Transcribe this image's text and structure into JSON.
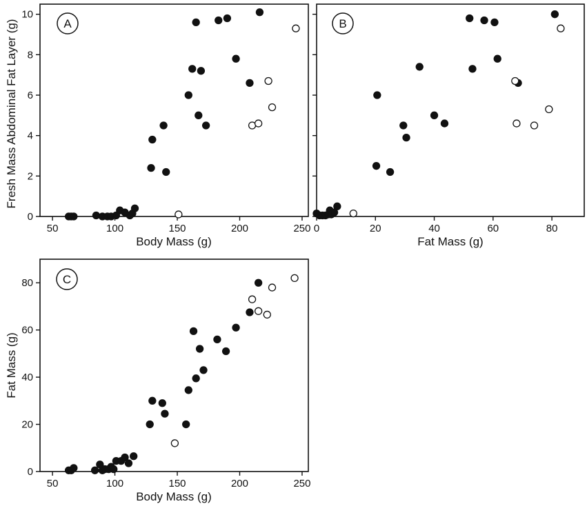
{
  "chart_data": [
    {
      "panel": "A",
      "type": "scatter",
      "xlabel": "Body Mass (g)",
      "ylabel": "Fresh Mass Abdominal Fat Layer (g)",
      "xlim": [
        40,
        255
      ],
      "ylim": [
        0,
        10.5
      ],
      "xticks": [
        50,
        100,
        150,
        200,
        250
      ],
      "yticks": [
        0,
        2,
        4,
        6,
        8,
        10
      ],
      "grid": false,
      "series": [
        {
          "marker": "filled",
          "points": [
            [
              63,
              0.0
            ],
            [
              65,
              0.0
            ],
            [
              67,
              0.0
            ],
            [
              85,
              0.05
            ],
            [
              90,
              0.0
            ],
            [
              94,
              0.0
            ],
            [
              97,
              0.0
            ],
            [
              101,
              0.05
            ],
            [
              104,
              0.3
            ],
            [
              108,
              0.2
            ],
            [
              112,
              0.05
            ],
            [
              114,
              0.15
            ],
            [
              116,
              0.4
            ],
            [
              129,
              2.4
            ],
            [
              130,
              3.8
            ],
            [
              139,
              4.5
            ],
            [
              141,
              2.2
            ],
            [
              159,
              6.0
            ],
            [
              162,
              7.3
            ],
            [
              165,
              9.6
            ],
            [
              167,
              5.0
            ],
            [
              169,
              7.2
            ],
            [
              173,
              4.5
            ],
            [
              183,
              9.7
            ],
            [
              190,
              9.8
            ],
            [
              197,
              7.8
            ],
            [
              208,
              6.6
            ],
            [
              216,
              10.1
            ]
          ]
        },
        {
          "marker": "open",
          "points": [
            [
              151,
              0.1
            ],
            [
              210,
              4.5
            ],
            [
              215,
              4.6
            ],
            [
              223,
              6.7
            ],
            [
              226,
              5.4
            ],
            [
              245,
              9.3
            ]
          ]
        }
      ]
    },
    {
      "panel": "B",
      "type": "scatter",
      "xlabel": "Fat Mass (g)",
      "ylabel": "",
      "xlim": [
        0,
        91
      ],
      "ylim": [
        0,
        10.5
      ],
      "xticks": [
        0,
        20,
        40,
        60,
        80
      ],
      "yticks": [
        0,
        2,
        4,
        6,
        8,
        10
      ],
      "grid": false,
      "series": [
        {
          "marker": "filled",
          "points": [
            [
              0,
              0.15
            ],
            [
              1,
              0.05
            ],
            [
              2,
              0.05
            ],
            [
              3,
              0.05
            ],
            [
              4,
              0.1
            ],
            [
              4.5,
              0.3
            ],
            [
              5,
              0.1
            ],
            [
              6,
              0.2
            ],
            [
              7,
              0.5
            ],
            [
              20.3,
              2.5
            ],
            [
              20.6,
              6.0
            ],
            [
              25,
              2.2
            ],
            [
              29.5,
              4.5
            ],
            [
              30.5,
              3.9
            ],
            [
              35,
              7.4
            ],
            [
              40,
              5.0
            ],
            [
              43.5,
              4.6
            ],
            [
              52,
              9.8
            ],
            [
              53,
              7.3
            ],
            [
              57,
              9.7
            ],
            [
              60.5,
              9.6
            ],
            [
              61.5,
              7.8
            ],
            [
              68.5,
              6.6
            ],
            [
              81,
              10.0
            ]
          ]
        },
        {
          "marker": "open",
          "points": [
            [
              12.5,
              0.15
            ],
            [
              67.5,
              6.7
            ],
            [
              68,
              4.6
            ],
            [
              74,
              4.5
            ],
            [
              79,
              5.3
            ],
            [
              83,
              9.3
            ]
          ]
        }
      ]
    },
    {
      "panel": "C",
      "type": "scatter",
      "xlabel": "Body Mass (g)",
      "ylabel": "Fat Mass (g)",
      "xlim": [
        40,
        255
      ],
      "ylim": [
        0,
        90
      ],
      "xticks": [
        50,
        100,
        150,
        200,
        250
      ],
      "yticks": [
        0,
        20,
        40,
        60,
        80
      ],
      "grid": false,
      "series": [
        {
          "marker": "filled",
          "points": [
            [
              63,
              0.5
            ],
            [
              65,
              0.5
            ],
            [
              67,
              1.5
            ],
            [
              84,
              0.5
            ],
            [
              88,
              3
            ],
            [
              90,
              0.5
            ],
            [
              92,
              1
            ],
            [
              95,
              1
            ],
            [
              97,
              2
            ],
            [
              99,
              1
            ],
            [
              101,
              4.5
            ],
            [
              105,
              4.5
            ],
            [
              108,
              6
            ],
            [
              111,
              3.5
            ],
            [
              115,
              6.5
            ],
            [
              128,
              20
            ],
            [
              130,
              30
            ],
            [
              138,
              29
            ],
            [
              140,
              24.5
            ],
            [
              157,
              20
            ],
            [
              159,
              34.5
            ],
            [
              163,
              59.5
            ],
            [
              165,
              39.5
            ],
            [
              168,
              52
            ],
            [
              171,
              43
            ],
            [
              182,
              56
            ],
            [
              189,
              51
            ],
            [
              197,
              61
            ],
            [
              208,
              67.5
            ],
            [
              215,
              80
            ]
          ]
        },
        {
          "marker": "open",
          "points": [
            [
              148,
              12
            ],
            [
              210,
              73
            ],
            [
              215,
              68
            ],
            [
              222,
              66.5
            ],
            [
              226,
              78
            ],
            [
              244,
              82
            ]
          ]
        }
      ]
    }
  ]
}
